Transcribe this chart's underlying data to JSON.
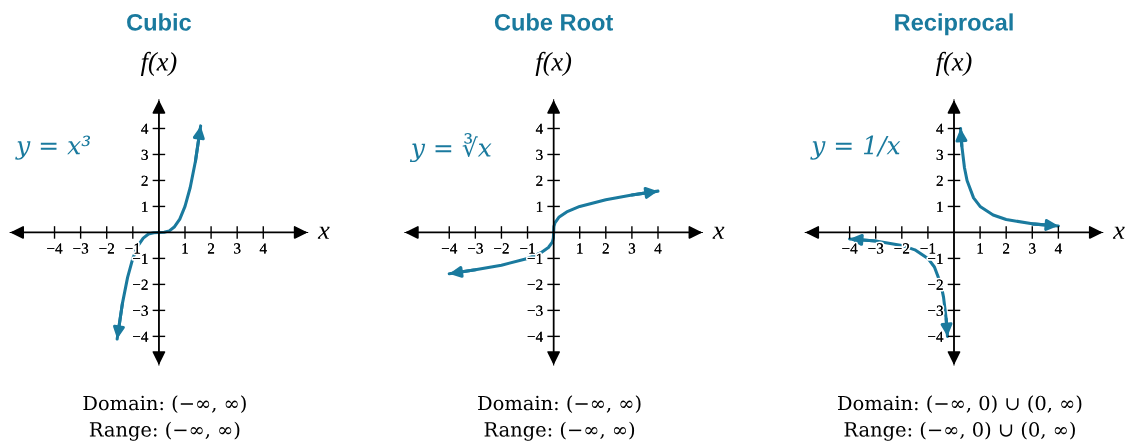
{
  "chart_data": [
    {
      "type": "line",
      "title": "Cubic",
      "xlabel": "x",
      "ylabel": "f(x)",
      "xlim": [
        -5.7,
        5.7
      ],
      "ylim": [
        -5.1,
        5.1
      ],
      "xticks": [
        {
          "value": -4,
          "label": "−4"
        },
        {
          "value": -3,
          "label": "−3"
        },
        {
          "value": -2,
          "label": "−2"
        },
        {
          "value": -1,
          "label": "−1"
        },
        1,
        2,
        3,
        4
      ],
      "yticks": [
        {
          "value": -4,
          "label": "−4"
        },
        {
          "value": -3,
          "label": "−3"
        },
        {
          "value": -2,
          "label": "−2"
        },
        {
          "value": -1,
          "label": "−1"
        },
        1,
        2,
        3,
        4
      ],
      "series": [
        {
          "color": "#1a7a9e",
          "x": [
            -1.6,
            -1.4,
            -1.2,
            -1.0,
            -0.8,
            -0.6,
            -0.4,
            -0.2,
            0,
            0.2,
            0.4,
            0.6,
            0.8,
            1.0,
            1.2,
            1.4,
            1.6
          ],
          "values": [
            -4.1,
            -2.74,
            -1.73,
            -1.0,
            -0.51,
            -0.22,
            -0.06,
            -0.01,
            0,
            0.01,
            0.06,
            0.22,
            0.51,
            1.0,
            1.73,
            2.74,
            4.1
          ]
        }
      ],
      "annotations": [
        "y = x³",
        "Domain: (−∞, ∞)",
        "Range: (−∞, ∞)"
      ],
      "marker": "none",
      "line_style": "solid",
      "legend": false,
      "grid": false
    },
    {
      "type": "line",
      "title": "Cube Root",
      "xlabel": "x",
      "ylabel": "f(x)",
      "xlim": [
        -5.7,
        5.7
      ],
      "ylim": [
        -5.1,
        5.1
      ],
      "xticks": [
        {
          "value": -4,
          "label": "−4"
        },
        {
          "value": -3,
          "label": "−3"
        },
        {
          "value": -2,
          "label": "−2"
        },
        {
          "value": -1,
          "label": "−1"
        },
        1,
        2,
        3,
        4
      ],
      "yticks": [
        {
          "value": -4,
          "label": "−4"
        },
        {
          "value": -3,
          "label": "−3"
        },
        {
          "value": -2,
          "label": "−2"
        },
        {
          "value": -1,
          "label": "−1"
        },
        1,
        2,
        3,
        4
      ],
      "series": [
        {
          "color": "#1a7a9e",
          "x": [
            -4,
            -3,
            -2,
            -1,
            -0.5,
            -0.2,
            -0.05,
            -0.01,
            0,
            0.01,
            0.05,
            0.2,
            0.5,
            1,
            2,
            3,
            4
          ],
          "values": [
            -1.59,
            -1.44,
            -1.26,
            -1.0,
            -0.79,
            -0.58,
            -0.37,
            -0.22,
            0,
            0.22,
            0.37,
            0.58,
            0.79,
            1.0,
            1.26,
            1.44,
            1.59
          ]
        }
      ],
      "annotations": [
        "y = ∛x",
        "Domain: (−∞, ∞)",
        "Range: (−∞, ∞)"
      ],
      "marker": "none",
      "line_style": "solid",
      "legend": false,
      "grid": false
    },
    {
      "type": "line",
      "title": "Reciprocal",
      "xlabel": "x",
      "ylabel": "f(x)",
      "xlim": [
        -5.7,
        5.7
      ],
      "ylim": [
        -5.1,
        5.1
      ],
      "xticks": [
        {
          "value": -4,
          "label": "−4"
        },
        {
          "value": -3,
          "label": "−3"
        },
        {
          "value": -2,
          "label": "−2"
        },
        {
          "value": -1,
          "label": "−1"
        },
        1,
        2,
        3,
        4
      ],
      "yticks": [
        {
          "value": -4,
          "label": "−4"
        },
        {
          "value": -3,
          "label": "−3"
        },
        {
          "value": -2,
          "label": "−2"
        },
        {
          "value": -1,
          "label": "−1"
        },
        1,
        2,
        3,
        4
      ],
      "series": [
        {
          "color": "#1a7a9e",
          "x": [
            0.25,
            0.3,
            0.4,
            0.5,
            0.75,
            1,
            1.5,
            2,
            3,
            4
          ],
          "values": [
            4,
            3.33,
            2.5,
            2,
            1.33,
            1,
            0.67,
            0.5,
            0.33,
            0.25
          ]
        },
        {
          "color": "#1a7a9e",
          "x": [
            -4,
            -3,
            -2,
            -1.5,
            -1,
            -0.75,
            -0.5,
            -0.4,
            -0.3,
            -0.25
          ],
          "values": [
            -0.25,
            -0.33,
            -0.5,
            -0.67,
            -1,
            -1.33,
            -2,
            -2.5,
            -3.33,
            -4
          ]
        }
      ],
      "annotations": [
        "y = 1/x",
        "Domain: (−∞, 0) ∪ (0, ∞)",
        "Range: (−∞, 0) ∪ (0, ∞)"
      ],
      "marker": "none",
      "line_style": "solid",
      "legend": false,
      "grid": false
    }
  ]
}
